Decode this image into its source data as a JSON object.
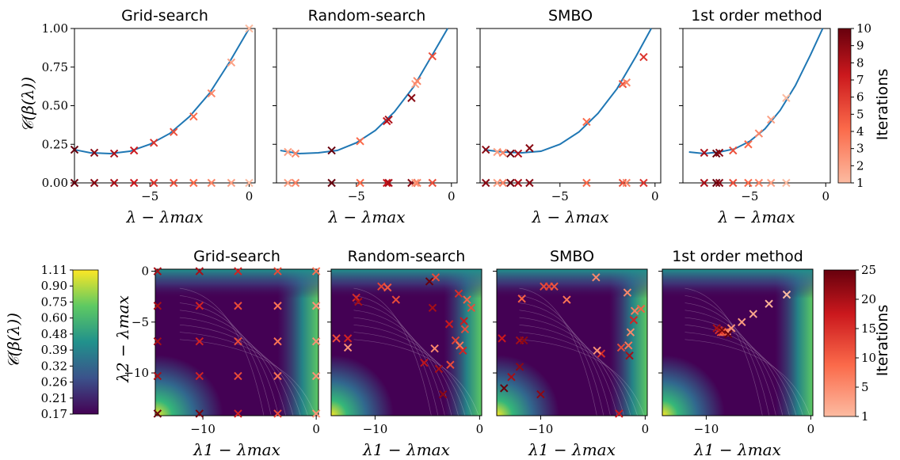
{
  "colors": {
    "curve": "#1f77b4",
    "cmap_reds": [
      "#fcbba1",
      "#fb6a4a",
      "#cb181d",
      "#67000d"
    ],
    "cmap_viridis": [
      "#440154",
      "#3b528b",
      "#21918c",
      "#5ec962",
      "#fde725"
    ]
  },
  "labels": {
    "ylabel_top": "𝒞(β(λ))",
    "xlabel_top": "λ − λmax",
    "ylabel_bottom": "λ2 − λmax",
    "xlabel_bottom": "λ1 − λmax",
    "cbar_label": "Iterations",
    "cbar_left_label": "𝒞(β(λ))"
  },
  "top_cbar_ticks": [
    "1",
    "2",
    "3",
    "4",
    "5",
    "6",
    "7",
    "8",
    "9",
    "10"
  ],
  "bottom_cbar_ticks": [
    "1",
    "5",
    "10",
    "15",
    "20",
    "25"
  ],
  "left_cbar_ticks": [
    "1.11",
    "0.90",
    "0.75",
    "0.60",
    "0.48",
    "0.39",
    "0.32",
    "0.26",
    "0.21",
    "0.17"
  ],
  "chart_data": [
    {
      "type": "line",
      "title": "Grid-search",
      "xlim": [
        -8.8,
        0.3
      ],
      "ylim": [
        0,
        1
      ],
      "xticks": [
        "−5",
        "0"
      ],
      "yticks": [
        "0.00",
        "0.25",
        "0.50",
        "0.75",
        "1.00"
      ],
      "curve": {
        "x": [
          -8.8,
          -8,
          -7,
          -6,
          -5,
          -4,
          -3,
          -2,
          -1,
          0
        ],
        "y": [
          0.215,
          0.195,
          0.19,
          0.205,
          0.25,
          0.32,
          0.43,
          0.58,
          0.78,
          1.0
        ]
      },
      "points": {
        "x": [
          -8.8,
          -7.8,
          -6.8,
          -5.8,
          -4.8,
          -3.8,
          -2.8,
          -1.9,
          -0.9,
          0.0
        ],
        "y": [
          0.215,
          0.195,
          0.19,
          0.21,
          0.26,
          0.33,
          0.43,
          0.58,
          0.78,
          1.0
        ],
        "iter": [
          10,
          9,
          8,
          7,
          6,
          5,
          4,
          3,
          2,
          1
        ]
      }
    },
    {
      "type": "line",
      "title": "Random-search",
      "xlim": [
        -9.2,
        0.3
      ],
      "ylim": [
        0,
        1
      ],
      "xticks": [
        "−5",
        "0"
      ],
      "yticks": [],
      "curve": {
        "x": [
          -9,
          -8,
          -7,
          -6,
          -5,
          -4,
          -3,
          -2,
          -1,
          -0.2
        ],
        "y": [
          0.21,
          0.19,
          0.195,
          0.21,
          0.26,
          0.34,
          0.46,
          0.62,
          0.83,
          1.0
        ]
      },
      "points": {
        "x": [
          -8.6,
          -8.2,
          -6.3,
          -4.8,
          -3.4,
          -3.3,
          -2.1,
          -1.9,
          -1.8,
          -1.0
        ],
        "y": [
          0.2,
          0.19,
          0.21,
          0.27,
          0.4,
          0.41,
          0.55,
          0.64,
          0.66,
          0.82
        ],
        "iter": [
          2,
          3,
          10,
          4,
          7,
          8,
          9,
          2,
          3,
          5
        ]
      }
    },
    {
      "type": "line",
      "title": "SMBO",
      "xlim": [
        -9.2,
        0.3
      ],
      "ylim": [
        0,
        1
      ],
      "xticks": [
        "−5",
        "0"
      ],
      "yticks": [],
      "curve": {
        "x": [
          -9,
          -8,
          -7,
          -6,
          -5,
          -4,
          -3,
          -2,
          -1,
          -0.2
        ],
        "y": [
          0.215,
          0.2,
          0.195,
          0.205,
          0.25,
          0.33,
          0.45,
          0.61,
          0.82,
          1.0
        ]
      },
      "points": {
        "x": [
          -8.9,
          -8.3,
          -8.0,
          -7.6,
          -7.2,
          -6.6,
          -3.6,
          -1.7,
          -1.5,
          -0.6
        ],
        "y": [
          0.215,
          0.2,
          0.195,
          0.19,
          0.19,
          0.225,
          0.395,
          0.64,
          0.65,
          0.815
        ],
        "iter": [
          9,
          2,
          3,
          10,
          8,
          9,
          4,
          5,
          3,
          6
        ]
      }
    },
    {
      "type": "line",
      "title": "1st order method",
      "xlim": [
        -9.4,
        0.3
      ],
      "ylim": [
        0,
        1
      ],
      "xticks": [
        "−5",
        "0"
      ],
      "yticks": [],
      "curve": {
        "x": [
          -9,
          -8,
          -7,
          -6,
          -5,
          -4,
          -3,
          -2,
          -1,
          -0.2
        ],
        "y": [
          0.2,
          0.19,
          0.2,
          0.22,
          0.27,
          0.35,
          0.47,
          0.63,
          0.83,
          1.0
        ]
      },
      "points": {
        "x": [
          -8.0,
          -7.2,
          -7.0,
          -6.1,
          -5.1,
          -4.4,
          -3.6,
          -2.6
        ],
        "y": [
          0.195,
          0.19,
          0.195,
          0.21,
          0.25,
          0.32,
          0.41,
          0.55
        ],
        "iter": [
          8,
          10,
          9,
          5,
          4,
          3,
          2,
          1
        ]
      }
    },
    {
      "type": "heatmap",
      "title": "Grid-search",
      "xlim": [
        -14.2,
        0.2
      ],
      "ylim": [
        -14.2,
        0.2
      ],
      "xticks": [
        "−10",
        "0"
      ],
      "yticks": [
        "0",
        "−5",
        "−10"
      ],
      "points": {
        "x": [
          -14,
          -10.3,
          -6.9,
          -3.4,
          0,
          -14,
          -10.3,
          -6.9,
          -3.4,
          0,
          -14,
          -10.3,
          -6.9,
          -3.4,
          0,
          -14,
          -10.3,
          -6.9,
          -3.4,
          0,
          -14,
          -10.3,
          -6.9,
          -3.4,
          0
        ],
        "y": [
          0,
          0,
          0,
          0,
          0,
          -3.4,
          -3.4,
          -3.4,
          -3.4,
          -3.4,
          -6.9,
          -6.9,
          -6.9,
          -6.9,
          -6.9,
          -10.3,
          -10.3,
          -10.3,
          -10.3,
          -10.3,
          -14,
          -14,
          -14,
          -14,
          -14
        ],
        "iter": [
          20,
          20,
          16,
          12,
          8,
          20,
          16,
          12,
          8,
          5,
          20,
          16,
          12,
          8,
          5,
          20,
          16,
          12,
          8,
          5,
          25,
          24,
          16,
          12,
          5
        ]
      }
    },
    {
      "type": "heatmap",
      "title": "Random-search",
      "xlim": [
        -14.2,
        0.2
      ],
      "ylim": [
        -14.2,
        0.2
      ],
      "xticks": [
        "−10",
        "0"
      ],
      "yticks": [],
      "points": {
        "x": [
          -4.8,
          -4.2,
          -9.4,
          -8.8,
          -11.8,
          -11.6,
          -8.0,
          -2.0,
          -1.2,
          -0.8,
          -4.5,
          -2.9,
          -1.5,
          -1.4,
          -13.7,
          -12.6,
          -2.3,
          -1.9,
          -4.3,
          -1.6,
          -5.3,
          -3.9,
          -2.8,
          -3.5,
          -12.6
        ],
        "y": [
          -1.0,
          -0.6,
          -1.5,
          -1.6,
          -2.6,
          -3.0,
          -2.8,
          -2.2,
          -2.8,
          -3.6,
          -3.6,
          -5.2,
          -4.9,
          -5.7,
          -6.6,
          -6.6,
          -6.8,
          -7.3,
          -7.6,
          -7.8,
          -9.0,
          -9.6,
          -9.2,
          -12.1,
          -7.5
        ],
        "iter": [
          25,
          12,
          13,
          11,
          15,
          20,
          12,
          15,
          10,
          12,
          20,
          17,
          17,
          12,
          12,
          16,
          13,
          8,
          6,
          16,
          18,
          20,
          12,
          22,
          5
        ]
      }
    },
    {
      "type": "heatmap",
      "title": "SMBO",
      "xlim": [
        -14.2,
        0.2
      ],
      "ylim": [
        -14.2,
        0.2
      ],
      "xticks": [
        "−10",
        "0"
      ],
      "yticks": [],
      "points": {
        "x": [
          -9.7,
          -9.2,
          -8.7,
          -4.7,
          -11.8,
          -7.5,
          -1.7,
          -1.0,
          -0.4,
          -1.1,
          -13.7,
          -12.0,
          -11.6,
          -4.2,
          -2.3,
          -1.6,
          -1.4,
          -12.0,
          -12.8,
          -13.5,
          -10.0,
          -2.5,
          -4.6,
          -1.5
        ],
        "y": [
          -1.5,
          -1.5,
          -1.5,
          -0.6,
          -2.7,
          -2.8,
          -2.1,
          -3.9,
          -3.7,
          -4.8,
          -6.6,
          -6.8,
          -6.8,
          -8.1,
          -7.5,
          -7.3,
          -6.0,
          -9.4,
          -10.4,
          -11.5,
          -12.1,
          -14.0,
          -7.8,
          -8.3
        ],
        "iter": [
          12,
          13,
          11,
          6,
          10,
          8,
          6,
          7,
          10,
          16,
          17,
          20,
          22,
          15,
          12,
          8,
          6,
          22,
          20,
          25,
          22,
          17,
          5,
          20
        ]
      }
    },
    {
      "type": "heatmap",
      "title": "1st order method",
      "xlim": [
        -14.2,
        0.2
      ],
      "ylim": [
        -14.2,
        0.2
      ],
      "xticks": [
        "−10",
        "0"
      ],
      "yticks": [],
      "points": {
        "x": [
          -2.3,
          -4.0,
          -5.5,
          -6.6,
          -7.6,
          -8.0,
          -8.2,
          -8.4,
          -8.6,
          -8.8,
          -9.0,
          -8.5,
          -7.9
        ],
        "y": [
          -2.3,
          -3.2,
          -4.2,
          -5.0,
          -5.6,
          -5.9,
          -6.0,
          -6.0,
          -6.0,
          -5.8,
          -5.6,
          -5.8,
          -6.2
        ],
        "iter": [
          1,
          2,
          3,
          4,
          5,
          6,
          8,
          10,
          12,
          15,
          20,
          24,
          25
        ]
      }
    }
  ]
}
